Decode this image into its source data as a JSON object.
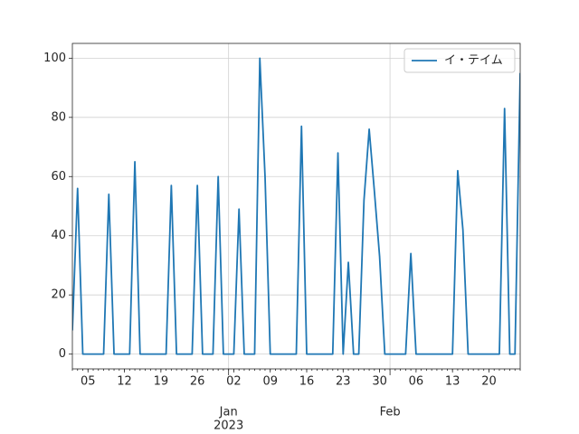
{
  "chart_data": {
    "type": "line",
    "x": [
      "2022-12-02",
      "2022-12-03",
      "2022-12-04",
      "2022-12-05",
      "2022-12-06",
      "2022-12-07",
      "2022-12-08",
      "2022-12-09",
      "2022-12-10",
      "2022-12-11",
      "2022-12-12",
      "2022-12-13",
      "2022-12-14",
      "2022-12-15",
      "2022-12-16",
      "2022-12-17",
      "2022-12-18",
      "2022-12-19",
      "2022-12-20",
      "2022-12-21",
      "2022-12-22",
      "2022-12-23",
      "2022-12-24",
      "2022-12-25",
      "2022-12-26",
      "2022-12-27",
      "2022-12-28",
      "2022-12-29",
      "2022-12-30",
      "2022-12-31",
      "2023-01-01",
      "2023-01-02",
      "2023-01-03",
      "2023-01-04",
      "2023-01-05",
      "2023-01-06",
      "2023-01-07",
      "2023-01-08",
      "2023-01-09",
      "2023-01-10",
      "2023-01-11",
      "2023-01-12",
      "2023-01-13",
      "2023-01-14",
      "2023-01-15",
      "2023-01-16",
      "2023-01-17",
      "2023-01-18",
      "2023-01-19",
      "2023-01-20",
      "2023-01-21",
      "2023-01-22",
      "2023-01-23",
      "2023-01-24",
      "2023-01-25",
      "2023-01-26",
      "2023-01-27",
      "2023-01-28",
      "2023-01-29",
      "2023-01-30",
      "2023-01-31",
      "2023-02-01",
      "2023-02-02",
      "2023-02-03",
      "2023-02-04",
      "2023-02-05",
      "2023-02-06",
      "2023-02-07",
      "2023-02-08",
      "2023-02-09",
      "2023-02-10",
      "2023-02-11",
      "2023-02-12",
      "2023-02-13",
      "2023-02-14",
      "2023-02-15",
      "2023-02-16",
      "2023-02-17",
      "2023-02-18",
      "2023-02-19",
      "2023-02-20",
      "2023-02-21",
      "2023-02-22",
      "2023-02-23",
      "2023-02-24",
      "2023-02-25",
      "2023-02-26"
    ],
    "series": [
      {
        "name": "イ・テイム",
        "color": "#1f77b4",
        "values": [
          8,
          56,
          0,
          0,
          0,
          0,
          0,
          54,
          0,
          0,
          0,
          0,
          65,
          0,
          0,
          0,
          0,
          0,
          0,
          57,
          0,
          0,
          0,
          0,
          57,
          0,
          0,
          0,
          60,
          0,
          0,
          0,
          49,
          0,
          0,
          0,
          100,
          60,
          0,
          0,
          0,
          0,
          0,
          0,
          77,
          0,
          0,
          0,
          0,
          0,
          0,
          68,
          0,
          31,
          0,
          0,
          52,
          76,
          55,
          33,
          0,
          0,
          0,
          0,
          0,
          34,
          0,
          0,
          0,
          0,
          0,
          0,
          0,
          0,
          62,
          42,
          0,
          0,
          0,
          0,
          0,
          0,
          0,
          83,
          0,
          0,
          95
        ]
      }
    ],
    "xlim": [
      "2022-12-02",
      "2023-02-26"
    ],
    "xticks": [
      {
        "value": "2022-12-05",
        "label": "05"
      },
      {
        "value": "2022-12-12",
        "label": "12"
      },
      {
        "value": "2022-12-19",
        "label": "19"
      },
      {
        "value": "2022-12-26",
        "label": "26"
      },
      {
        "value": "2023-01-02",
        "label": "02"
      },
      {
        "value": "2023-01-09",
        "label": "09"
      },
      {
        "value": "2023-01-16",
        "label": "16"
      },
      {
        "value": "2023-01-23",
        "label": "23"
      },
      {
        "value": "2023-01-30",
        "label": "30"
      },
      {
        "value": "2023-02-06",
        "label": "06"
      },
      {
        "value": "2023-02-13",
        "label": "13"
      },
      {
        "value": "2023-02-20",
        "label": "20"
      }
    ],
    "xticks_major": [
      {
        "value": "2023-01-01",
        "label": "Jan",
        "sublabel": "2023"
      },
      {
        "value": "2023-02-01",
        "label": "Feb"
      }
    ],
    "ylim": [
      -5,
      105
    ],
    "yticks": [
      0,
      20,
      40,
      60,
      80,
      100
    ],
    "grid": true,
    "legend": "upper right"
  }
}
